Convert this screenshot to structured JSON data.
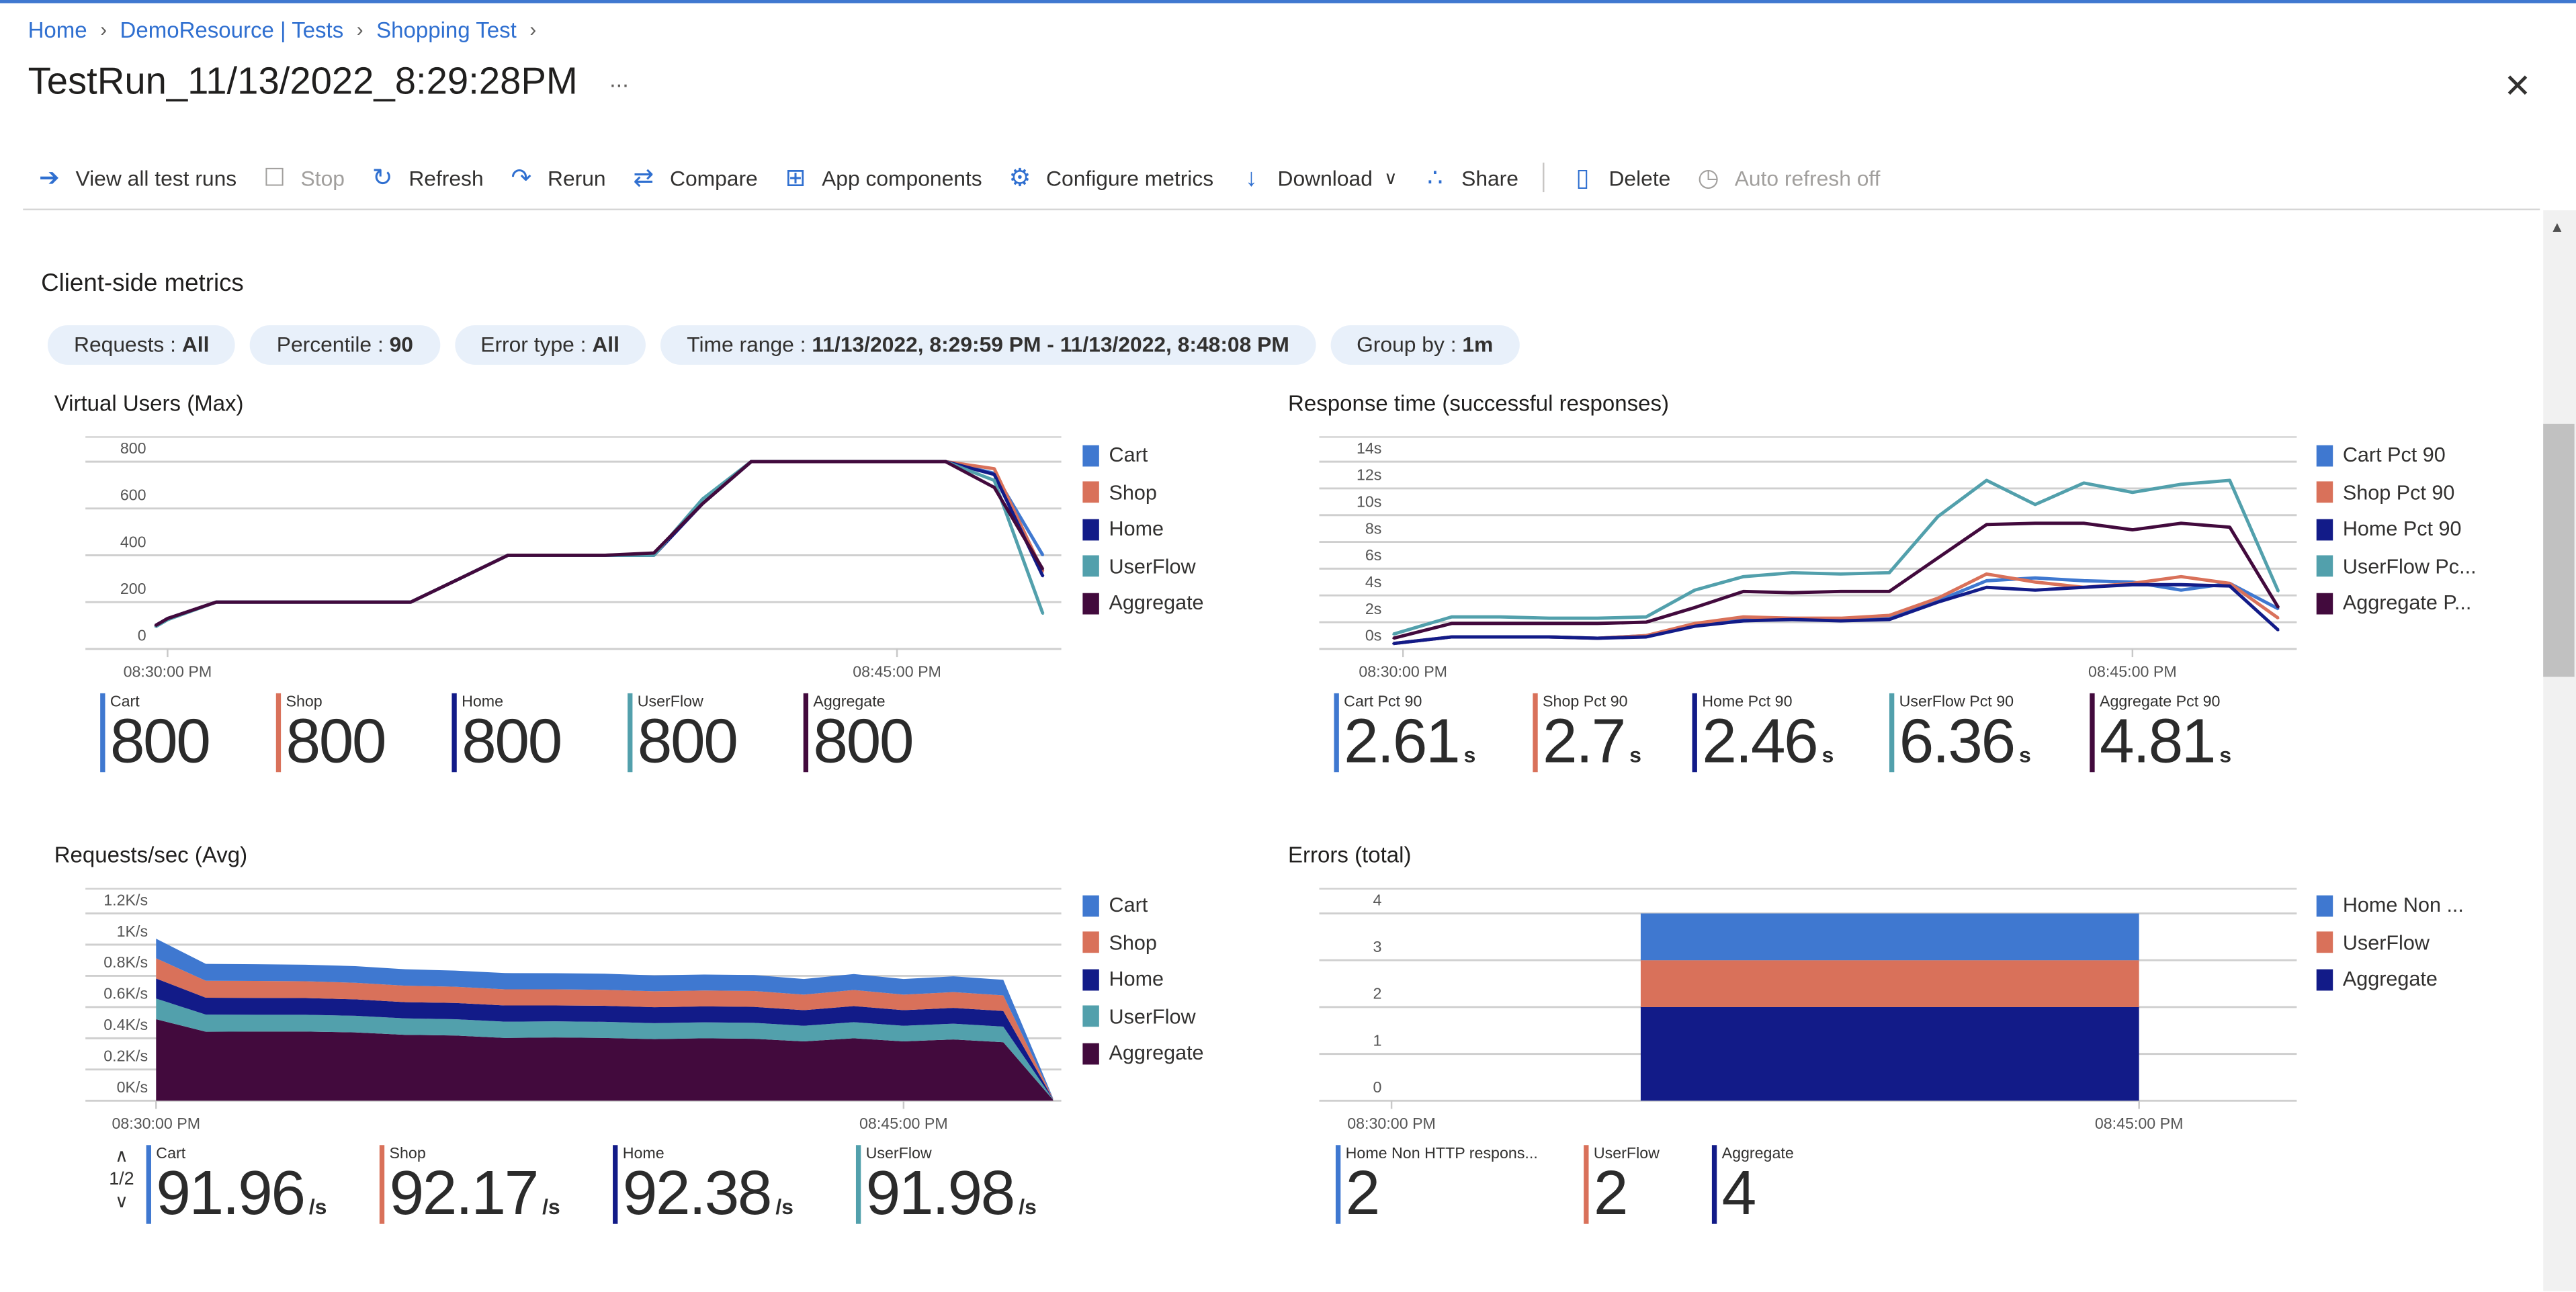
{
  "breadcrumb": [
    "Home",
    "DemoResource | Tests",
    "Shopping Test"
  ],
  "title": "TestRun_11/13/2022_8:29:28PM",
  "more_label": "...",
  "close_icon": "close-icon",
  "toolbar": [
    {
      "label": "View all test runs",
      "icon": "arrow-circle-right-icon",
      "disabled": false
    },
    {
      "label": "Stop",
      "icon": "stop-icon",
      "disabled": true
    },
    {
      "label": "Refresh",
      "icon": "refresh-icon",
      "disabled": false
    },
    {
      "label": "Rerun",
      "icon": "rerun-icon",
      "disabled": false
    },
    {
      "label": "Compare",
      "icon": "compare-icon",
      "disabled": false
    },
    {
      "label": "App components",
      "icon": "app-components-icon",
      "disabled": false
    },
    {
      "label": "Configure metrics",
      "icon": "gear-icon",
      "disabled": false
    },
    {
      "label": "Download",
      "icon": "download-icon",
      "disabled": false,
      "dropdown": true
    },
    {
      "label": "Share",
      "icon": "share-icon",
      "disabled": false
    },
    {
      "label": "Delete",
      "icon": "trash-icon",
      "disabled": false
    },
    {
      "label": "Auto refresh off",
      "icon": "clock-icon",
      "disabled": true
    }
  ],
  "section_title": "Client-side metrics",
  "filters": [
    {
      "label": "Requests",
      "value": "All"
    },
    {
      "label": "Percentile",
      "value": "90"
    },
    {
      "label": "Error type",
      "value": "All"
    },
    {
      "label": "Time range",
      "value": "11/13/2022, 8:29:59 PM - 11/13/2022, 8:48:08 PM"
    },
    {
      "label": "Group by",
      "value": "1m"
    }
  ],
  "pager": {
    "up_icon": "chevron-up-icon",
    "label": "1/2",
    "down_icon": "chevron-down-icon"
  },
  "chart_data": [
    {
      "type": "line",
      "title": "Virtual Users (Max)",
      "x_ticks": [
        "08:30:00 PM",
        "08:45:00 PM"
      ],
      "y_ticks": [
        "0",
        "200",
        "400",
        "600",
        "800"
      ],
      "ylim": [
        0,
        800
      ],
      "grid": true,
      "legend_position": "right",
      "x": [
        "20:29:45",
        "20:30",
        "20:31",
        "20:32",
        "20:33",
        "20:34",
        "20:35",
        "20:36",
        "20:37",
        "20:38",
        "20:39",
        "20:40",
        "20:41",
        "20:42",
        "20:43",
        "20:44",
        "20:45",
        "20:46",
        "20:47",
        "20:48"
      ],
      "series": [
        {
          "name": "Cart",
          "legend": "Cart",
          "color": "#3f78d0",
          "values": [
            100,
            130,
            200,
            200,
            200,
            200,
            200,
            300,
            400,
            400,
            400,
            405,
            620,
            800,
            800,
            800,
            800,
            800,
            750,
            400
          ]
        },
        {
          "name": "Shop",
          "legend": "Shop",
          "color": "#d9715a",
          "values": [
            100,
            130,
            200,
            200,
            200,
            200,
            200,
            300,
            400,
            400,
            400,
            405,
            620,
            800,
            800,
            800,
            800,
            800,
            770,
            330
          ]
        },
        {
          "name": "Home",
          "legend": "Home",
          "color": "#121b88",
          "values": [
            100,
            130,
            200,
            200,
            200,
            200,
            200,
            300,
            400,
            400,
            400,
            400,
            620,
            800,
            800,
            800,
            800,
            800,
            745,
            310
          ]
        },
        {
          "name": "UserFlow",
          "legend": "UserFlow",
          "color": "#52a0ac",
          "values": [
            95,
            125,
            200,
            200,
            200,
            200,
            200,
            300,
            400,
            400,
            400,
            400,
            640,
            800,
            800,
            800,
            800,
            800,
            720,
            150
          ]
        },
        {
          "name": "Aggregate",
          "legend": "Aggregate",
          "color": "#420a3d",
          "values": [
            100,
            130,
            200,
            200,
            200,
            200,
            200,
            300,
            400,
            400,
            400,
            410,
            620,
            800,
            800,
            800,
            800,
            800,
            690,
            340
          ]
        }
      ],
      "stats": [
        {
          "label": "Cart",
          "value": "800",
          "unit": "",
          "color": "#3f78d0"
        },
        {
          "label": "Shop",
          "value": "800",
          "unit": "",
          "color": "#d9715a"
        },
        {
          "label": "Home",
          "value": "800",
          "unit": "",
          "color": "#121b88"
        },
        {
          "label": "UserFlow",
          "value": "800",
          "unit": "",
          "color": "#52a0ac"
        },
        {
          "label": "Aggregate",
          "value": "800",
          "unit": "",
          "color": "#420a3d"
        }
      ]
    },
    {
      "type": "line",
      "title": "Response time (successful responses)",
      "x_ticks": [
        "08:30:00 PM",
        "08:45:00 PM"
      ],
      "y_ticks": [
        "0s",
        "2s",
        "4s",
        "6s",
        "8s",
        "10s",
        "12s",
        "14s"
      ],
      "ylim": [
        0,
        14
      ],
      "grid": true,
      "legend_position": "right",
      "x": [
        "20:29:48",
        "20:31",
        "20:32",
        "20:33",
        "20:34",
        "20:35",
        "20:36",
        "20:37",
        "20:38",
        "20:39",
        "20:40",
        "20:41",
        "20:42",
        "20:43",
        "20:44",
        "20:45",
        "20:46",
        "20:47",
        "20:48"
      ],
      "series": [
        {
          "name": "Cart Pct 90",
          "legend": "Cart Pct 90",
          "color": "#3f78d0",
          "values": [
            0.4,
            0.9,
            0.9,
            0.9,
            0.8,
            1.0,
            1.8,
            2.2,
            2.2,
            2.2,
            2.3,
            3.6,
            5.1,
            5.3,
            5.1,
            5.0,
            4.4,
            4.9,
            3.0
          ]
        },
        {
          "name": "Shop Pct 90",
          "legend": "Shop Pct 90",
          "color": "#d9715a",
          "values": [
            0.4,
            0.9,
            0.9,
            0.9,
            0.8,
            1.0,
            1.9,
            2.4,
            2.3,
            2.3,
            2.5,
            3.8,
            5.6,
            5.0,
            4.6,
            4.9,
            5.4,
            4.9,
            2.3
          ]
        },
        {
          "name": "Home Pct 90",
          "legend": "Home Pct 90",
          "color": "#121b88",
          "values": [
            0.4,
            0.9,
            0.9,
            0.9,
            0.8,
            0.9,
            1.7,
            2.1,
            2.2,
            2.1,
            2.2,
            3.5,
            4.6,
            4.4,
            4.6,
            4.8,
            4.8,
            4.7,
            1.4
          ]
        },
        {
          "name": "UserFlow Pct 90",
          "legend": "UserFlow Pc...",
          "color": "#52a0ac",
          "values": [
            1.1,
            2.4,
            2.4,
            2.3,
            2.3,
            2.4,
            4.4,
            5.4,
            5.7,
            5.6,
            5.7,
            9.9,
            12.6,
            10.8,
            12.4,
            11.7,
            12.3,
            12.6,
            4.3
          ]
        },
        {
          "name": "Aggregate Pct 90",
          "legend": "Aggregate P...",
          "color": "#420a3d",
          "values": [
            0.8,
            1.9,
            1.9,
            1.9,
            1.9,
            2.0,
            3.1,
            4.3,
            4.2,
            4.3,
            4.3,
            6.8,
            9.3,
            9.4,
            9.4,
            8.9,
            9.4,
            9.1,
            3.1
          ]
        }
      ],
      "stats": [
        {
          "label": "Cart Pct 90",
          "value": "2.61",
          "unit": "s",
          "color": "#3f78d0"
        },
        {
          "label": "Shop Pct 90",
          "value": "2.7",
          "unit": "s",
          "color": "#d9715a"
        },
        {
          "label": "Home Pct 90",
          "value": "2.46",
          "unit": "s",
          "color": "#121b88"
        },
        {
          "label": "UserFlow Pct 90",
          "value": "6.36",
          "unit": "s",
          "color": "#52a0ac"
        },
        {
          "label": "Aggregate Pct 90",
          "value": "4.81",
          "unit": "s",
          "color": "#420a3d"
        }
      ]
    },
    {
      "type": "area",
      "stacked": true,
      "title": "Requests/sec (Avg)",
      "x_ticks": [
        "08:30:00 PM",
        "08:45:00 PM"
      ],
      "y_ticks": [
        "0K/s",
        "0.2K/s",
        "0.4K/s",
        "0.6K/s",
        "0.8K/s",
        "1K/s",
        "1.2K/s"
      ],
      "ylim": [
        0,
        1200
      ],
      "grid": true,
      "legend_position": "right",
      "x": [
        "20:30",
        "20:31",
        "20:32",
        "20:33",
        "20:34",
        "20:35",
        "20:36",
        "20:37",
        "20:38",
        "20:39",
        "20:40",
        "20:41",
        "20:42",
        "20:43",
        "20:44",
        "20:45",
        "20:46",
        "20:47",
        "20:48"
      ],
      "series": [
        {
          "name": "Aggregate",
          "legend": "Aggregate",
          "color": "#420a3d",
          "values": [
            522,
            442,
            443,
            443,
            438,
            422,
            418,
            402,
            405,
            402,
            395,
            400,
            397,
            380,
            400,
            380,
            393,
            375,
            5
          ]
        },
        {
          "name": "UserFlow",
          "legend": "UserFlow",
          "color": "#52a0ac",
          "values": [
            133,
            110,
            108,
            108,
            106,
            105,
            104,
            104,
            103,
            103,
            102,
            102,
            102,
            100,
            103,
            100,
            101,
            100,
            3
          ]
        },
        {
          "name": "Home",
          "legend": "Home",
          "color": "#121b88",
          "values": [
            128,
            108,
            108,
            107,
            106,
            105,
            104,
            104,
            103,
            103,
            102,
            102,
            102,
            100,
            103,
            100,
            101,
            100,
            3
          ]
        },
        {
          "name": "Shop",
          "legend": "Shop",
          "color": "#d9715a",
          "values": [
            130,
            108,
            108,
            107,
            106,
            105,
            104,
            104,
            103,
            103,
            102,
            102,
            102,
            100,
            103,
            100,
            101,
            100,
            3
          ]
        },
        {
          "name": "Cart",
          "legend": "Cart",
          "color": "#3f78d0",
          "values": [
            125,
            109,
            108,
            107,
            106,
            105,
            104,
            104,
            103,
            103,
            102,
            102,
            102,
            100,
            103,
            100,
            101,
            100,
            3
          ]
        }
      ],
      "legend_order": [
        "Cart",
        "Shop",
        "Home",
        "UserFlow",
        "Aggregate"
      ],
      "stats": [
        {
          "label": "Cart",
          "value": "91.96",
          "unit": "/s",
          "color": "#3f78d0"
        },
        {
          "label": "Shop",
          "value": "92.17",
          "unit": "/s",
          "color": "#d9715a"
        },
        {
          "label": "Home",
          "value": "92.38",
          "unit": "/s",
          "color": "#121b88"
        },
        {
          "label": "UserFlow",
          "value": "91.98",
          "unit": "/s",
          "color": "#52a0ac"
        }
      ]
    },
    {
      "type": "bar",
      "stacked": true,
      "title": "Errors (total)",
      "x_ticks": [
        "08:30:00 PM",
        "08:45:00 PM"
      ],
      "y_ticks": [
        "0",
        "1",
        "2",
        "3",
        "4"
      ],
      "ylim": [
        0,
        4
      ],
      "grid": true,
      "legend_position": "right",
      "bar_span": [
        "20:35",
        "20:45"
      ],
      "series": [
        {
          "name": "Aggregate",
          "legend": "Aggregate",
          "color": "#121b88",
          "value": 2
        },
        {
          "name": "UserFlow",
          "legend": "UserFlow",
          "color": "#d9715a",
          "value": 1
        },
        {
          "name": "Home Non HTTP response",
          "legend": "Home Non ...",
          "color": "#3f78d0",
          "value": 1
        }
      ],
      "legend_order": [
        "Home Non HTTP response",
        "UserFlow",
        "Aggregate"
      ],
      "stats": [
        {
          "label": "Home Non HTTP respons...",
          "value": "2",
          "unit": "",
          "color": "#3f78d0"
        },
        {
          "label": "UserFlow",
          "value": "2",
          "unit": "",
          "color": "#d9715a"
        },
        {
          "label": "Aggregate",
          "value": "4",
          "unit": "",
          "color": "#121b88"
        }
      ]
    }
  ]
}
